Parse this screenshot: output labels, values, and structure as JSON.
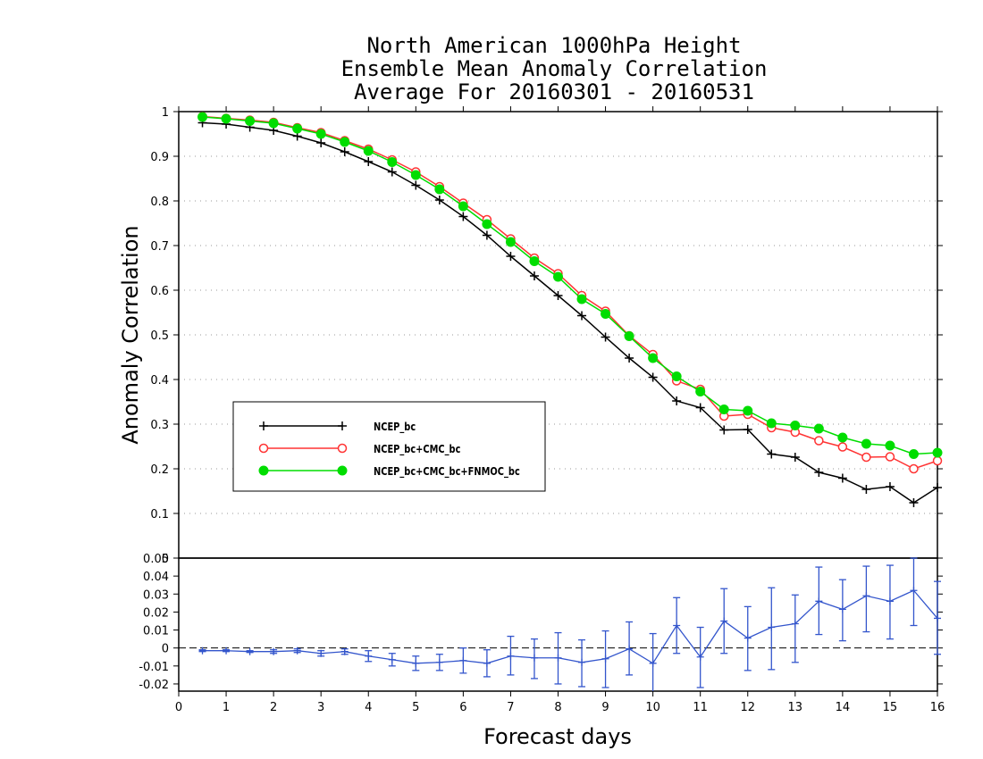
{
  "chart_data": [
    {
      "type": "line",
      "title": [
        "North American 1000hPa Height",
        "Ensemble Mean Anomaly Correlation",
        "Average For 20160301 - 20160531"
      ],
      "xlabel": "Forecast days",
      "ylabel": "Anomaly Correlation",
      "xlim": [
        0,
        16
      ],
      "ylim": [
        0,
        1
      ],
      "grid": true,
      "legend_position": "left-middle",
      "x_ticks": [
        "0",
        "1",
        "2",
        "3",
        "4",
        "5",
        "6",
        "7",
        "8",
        "9",
        "10",
        "11",
        "12",
        "13",
        "14",
        "15",
        "16"
      ],
      "y_ticks": [
        "0",
        "0.1",
        "0.2",
        "0.3",
        "0.4",
        "0.5",
        "0.6",
        "0.7",
        "0.8",
        "0.9",
        "1"
      ],
      "x": [
        0.5,
        1,
        1.5,
        2,
        2.5,
        3,
        3.5,
        4,
        4.5,
        5,
        5.5,
        6,
        6.5,
        7,
        7.5,
        8,
        8.5,
        9,
        9.5,
        10,
        10.5,
        11,
        11.5,
        12,
        12.5,
        13,
        13.5,
        14,
        14.5,
        15,
        15.5,
        16
      ],
      "series": [
        {
          "name": "NCEP_bc",
          "color": "#000000",
          "marker": "plus",
          "values": [
            0.975,
            0.972,
            0.965,
            0.958,
            0.945,
            0.93,
            0.91,
            0.888,
            0.865,
            0.835,
            0.802,
            0.765,
            0.723,
            0.676,
            0.632,
            0.588,
            0.543,
            0.495,
            0.448,
            0.405,
            0.352,
            0.337,
            0.287,
            0.288,
            0.233,
            0.226,
            0.192,
            0.179,
            0.154,
            0.16,
            0.124,
            0.158
          ]
        },
        {
          "name": "NCEP_bc+CMC_bc",
          "color": "#ff3333",
          "marker": "open-circle",
          "values": [
            0.989,
            0.985,
            0.981,
            0.976,
            0.964,
            0.953,
            0.935,
            0.916,
            0.892,
            0.865,
            0.832,
            0.795,
            0.758,
            0.715,
            0.672,
            0.637,
            0.588,
            0.553,
            0.498,
            0.456,
            0.397,
            0.378,
            0.318,
            0.322,
            0.292,
            0.282,
            0.263,
            0.249,
            0.226,
            0.227,
            0.2,
            0.218
          ]
        },
        {
          "name": "NCEP_bc+CMC_bc+FNMOC_bc",
          "color": "#00dd00",
          "marker": "filled-circle",
          "values": [
            0.988,
            0.984,
            0.979,
            0.974,
            0.962,
            0.95,
            0.932,
            0.912,
            0.887,
            0.858,
            0.826,
            0.788,
            0.748,
            0.708,
            0.665,
            0.63,
            0.58,
            0.547,
            0.497,
            0.448,
            0.407,
            0.373,
            0.333,
            0.33,
            0.302,
            0.297,
            0.29,
            0.27,
            0.256,
            0.252,
            0.233,
            0.236
          ]
        }
      ]
    },
    {
      "type": "line",
      "subtype": "difference-with-error-bars",
      "xlim": [
        0,
        16
      ],
      "ylim": [
        -0.024,
        0.05
      ],
      "y_ticks": [
        "0.05",
        "0.04",
        "0.03",
        "0.02",
        "0.01",
        "0",
        "-0.01",
        "-0.02"
      ],
      "color": "#3355cc",
      "zero_line": "dashed",
      "x": [
        0.5,
        1,
        1.5,
        2,
        2.5,
        3,
        3.5,
        4,
        4.5,
        5,
        5.5,
        6,
        6.5,
        7,
        7.5,
        8,
        8.5,
        9,
        9.5,
        10,
        10.5,
        11,
        11.5,
        12,
        12.5,
        13,
        13.5,
        14,
        14.5,
        15,
        15.5,
        16
      ],
      "values": [
        -0.0015,
        -0.0015,
        -0.002,
        -0.002,
        -0.0015,
        -0.003,
        -0.002,
        -0.0045,
        -0.0065,
        -0.0085,
        -0.008,
        -0.007,
        -0.0085,
        -0.0045,
        -0.0055,
        -0.0055,
        -0.008,
        -0.006,
        -0.0005,
        -0.0085,
        0.0125,
        -0.005,
        0.015,
        0.0055,
        0.0115,
        0.0135,
        0.026,
        0.0215,
        0.029,
        0.026,
        0.032,
        0.0165
      ],
      "err_low": [
        -0.002,
        -0.002,
        -0.0025,
        -0.003,
        -0.0025,
        -0.0045,
        -0.0035,
        -0.0075,
        -0.01,
        -0.0125,
        -0.0125,
        -0.014,
        -0.016,
        -0.015,
        -0.017,
        -0.02,
        -0.0215,
        -0.022,
        -0.015,
        -0.025,
        -0.003,
        -0.022,
        -0.003,
        -0.0125,
        -0.012,
        -0.008,
        0.0075,
        0.004,
        0.009,
        0.005,
        0.0125,
        -0.0035
      ],
      "err_high": [
        -0.001,
        -0.001,
        -0.0015,
        -0.001,
        -0.0005,
        -0.0015,
        -0.0005,
        -0.0015,
        -0.003,
        -0.0045,
        -0.0035,
        0.0,
        -0.001,
        0.0065,
        0.005,
        0.0085,
        0.0045,
        0.0095,
        0.0145,
        0.008,
        0.028,
        0.0115,
        0.033,
        0.023,
        0.0335,
        0.0295,
        0.045,
        0.038,
        0.0455,
        0.046,
        0.05,
        0.037
      ]
    }
  ]
}
